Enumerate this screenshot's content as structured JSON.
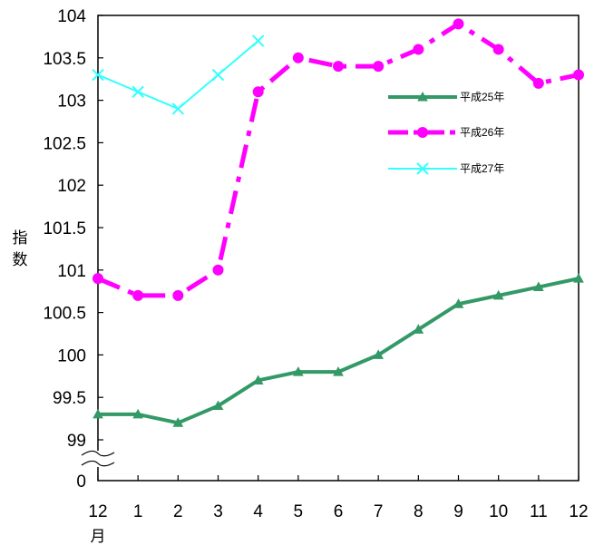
{
  "chart_data": {
    "type": "line",
    "title": "",
    "ylabel": "指数",
    "x_unit": "月",
    "categories": [
      "12",
      "1",
      "2",
      "3",
      "4",
      "5",
      "6",
      "7",
      "8",
      "9",
      "10",
      "11",
      "12"
    ],
    "y_ticks": [
      "104",
      "103.5",
      "103",
      "102.5",
      "102",
      "101.5",
      "101",
      "100.5",
      "100",
      "99.5",
      "99"
    ],
    "y_zero_label": "0",
    "ylim": [
      99,
      104
    ],
    "axis_break": true,
    "grid": false,
    "legend_position": "top-right-inside",
    "series": [
      {
        "name": "平成25年",
        "color": "#339966",
        "marker": "triangle",
        "line_style": "solid",
        "values": [
          99.3,
          99.3,
          99.2,
          99.4,
          99.7,
          99.8,
          99.8,
          100.0,
          100.3,
          100.6,
          100.7,
          100.8,
          100.9
        ]
      },
      {
        "name": "平成26年",
        "color": "#ff00ff",
        "marker": "circle",
        "line_style": "dash",
        "values": [
          100.9,
          100.7,
          100.7,
          101.0,
          103.1,
          103.5,
          103.4,
          103.4,
          103.6,
          103.9,
          103.6,
          103.2,
          103.3
        ]
      },
      {
        "name": "平成27年",
        "color": "#33ffff",
        "marker": "x",
        "line_style": "solid",
        "values": [
          103.3,
          103.1,
          102.9,
          103.3,
          103.7,
          null,
          null,
          null,
          null,
          null,
          null,
          null,
          null
        ]
      }
    ]
  }
}
